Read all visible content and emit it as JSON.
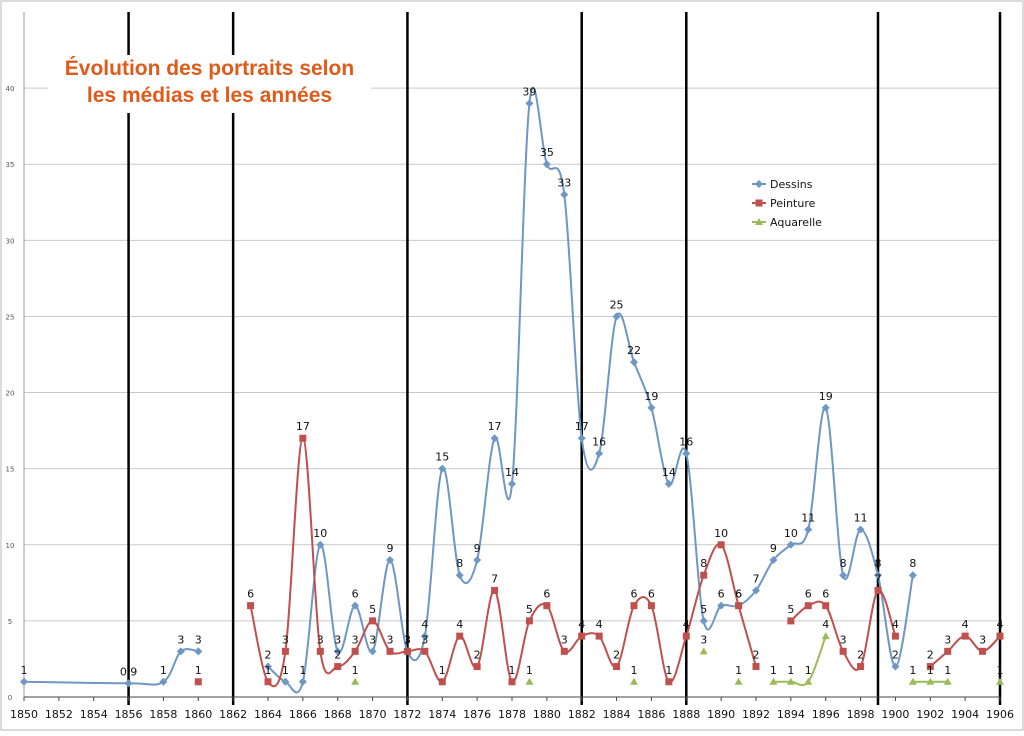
{
  "chart_data": {
    "type": "line",
    "title_lines": [
      "Évolution des portraits selon",
      "les médias et les années"
    ],
    "x_tick_labels": [
      "1850",
      "1852",
      "1854",
      "1856",
      "1858",
      "1860",
      "1862",
      "1864",
      "1866",
      "1868",
      "1870",
      "1872",
      "1874",
      "1876",
      "1878",
      "1880",
      "1882",
      "1884",
      "1886",
      "1888",
      "1890",
      "1892",
      "1894",
      "1896",
      "1898",
      "1900",
      "1902",
      "1904",
      "1906"
    ],
    "y_tick_labels": [
      "0",
      "5",
      "10",
      "15",
      "20",
      "25",
      "30",
      "35",
      "40"
    ],
    "xlim": [
      1850,
      1906
    ],
    "ylim": [
      0,
      45
    ],
    "grid": true,
    "legend_position": "upper-right",
    "vertical_markers": [
      1856,
      1862,
      1872,
      1882,
      1888,
      1899,
      1906
    ],
    "series": [
      {
        "name": "Dessins",
        "color": "#6f97c4",
        "marker": "diamond",
        "segments": [
          [
            [
              1850,
              1
            ],
            [
              1856,
              0.9
            ],
            [
              1858,
              1
            ],
            [
              1859,
              3
            ],
            [
              1860,
              3
            ]
          ],
          [
            [
              1864,
              2
            ],
            [
              1865,
              1
            ],
            [
              1866,
              1
            ],
            [
              1867,
              10
            ],
            [
              1868,
              3
            ],
            [
              1869,
              6
            ],
            [
              1870,
              3
            ],
            [
              1871,
              9
            ],
            [
              1872,
              3
            ],
            [
              1873,
              4
            ],
            [
              1874,
              15
            ],
            [
              1875,
              8
            ],
            [
              1876,
              9
            ],
            [
              1877,
              17
            ],
            [
              1878,
              14
            ],
            [
              1879,
              39
            ],
            [
              1880,
              35
            ],
            [
              1881,
              33
            ],
            [
              1882,
              17
            ],
            [
              1883,
              16
            ],
            [
              1884,
              25
            ],
            [
              1885,
              22
            ],
            [
              1886,
              19
            ],
            [
              1887,
              14
            ],
            [
              1888,
              16
            ],
            [
              1889,
              5
            ],
            [
              1890,
              6
            ],
            [
              1891,
              6
            ],
            [
              1892,
              7
            ],
            [
              1893,
              9
            ],
            [
              1894,
              10
            ],
            [
              1895,
              11
            ],
            [
              1896,
              19
            ],
            [
              1897,
              8
            ],
            [
              1898,
              11
            ],
            [
              1899,
              8
            ],
            [
              1900,
              2
            ],
            [
              1901,
              8
            ]
          ]
        ]
      },
      {
        "name": "Peinture",
        "color": "#c0504d",
        "marker": "square",
        "segments": [
          [
            [
              1860,
              1
            ]
          ],
          [
            [
              1863,
              6
            ],
            [
              1864,
              1
            ],
            [
              1865,
              3
            ],
            [
              1866,
              17
            ],
            [
              1867,
              3
            ],
            [
              1868,
              2
            ],
            [
              1869,
              3
            ],
            [
              1870,
              5
            ],
            [
              1871,
              3
            ],
            [
              1872,
              3
            ],
            [
              1873,
              3
            ],
            [
              1874,
              1
            ],
            [
              1875,
              4
            ],
            [
              1876,
              2
            ],
            [
              1877,
              7
            ],
            [
              1878,
              1
            ],
            [
              1879,
              5
            ],
            [
              1880,
              6
            ],
            [
              1881,
              3
            ],
            [
              1882,
              4
            ],
            [
              1883,
              4
            ],
            [
              1884,
              2
            ],
            [
              1885,
              6
            ],
            [
              1886,
              6
            ],
            [
              1887,
              1
            ],
            [
              1888,
              4
            ],
            [
              1889,
              8
            ],
            [
              1890,
              10
            ],
            [
              1891,
              6
            ],
            [
              1892,
              2
            ]
          ],
          [
            [
              1894,
              5
            ],
            [
              1895,
              6
            ],
            [
              1896,
              6
            ],
            [
              1897,
              3
            ],
            [
              1898,
              2
            ],
            [
              1899,
              7
            ],
            [
              1900,
              4
            ]
          ],
          [
            [
              1902,
              2
            ],
            [
              1903,
              3
            ],
            [
              1904,
              4
            ],
            [
              1905,
              3
            ],
            [
              1906,
              4
            ]
          ]
        ]
      },
      {
        "name": "Aquarelle",
        "color": "#9bbb59",
        "marker": "triangle",
        "segments": [
          [
            [
              1869,
              1
            ]
          ],
          [
            [
              1879,
              1
            ]
          ],
          [
            [
              1885,
              1
            ]
          ],
          [
            [
              1889,
              3
            ]
          ],
          [
            [
              1891,
              1
            ]
          ],
          [
            [
              1893,
              1
            ],
            [
              1894,
              1
            ],
            [
              1895,
              1
            ],
            [
              1896,
              4
            ]
          ],
          [
            [
              1901,
              1
            ],
            [
              1902,
              1
            ],
            [
              1903,
              1
            ]
          ],
          [
            [
              1906,
              1
            ]
          ]
        ]
      }
    ]
  }
}
